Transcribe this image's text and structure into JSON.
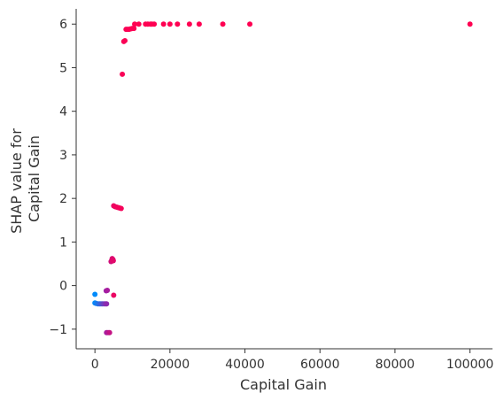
{
  "chart_data": {
    "type": "scatter",
    "title": "",
    "xlabel": "Capital Gain",
    "ylabel_lines": [
      "SHAP value for",
      "Capital Gain"
    ],
    "xlim": [
      -5000,
      106000
    ],
    "ylim": [
      -1.45,
      6.35
    ],
    "xticks": [
      0,
      20000,
      40000,
      60000,
      80000,
      100000
    ],
    "xtick_labels": [
      "0",
      "20000",
      "40000",
      "60000",
      "80000",
      "100000"
    ],
    "yticks": [
      -1,
      0,
      1,
      2,
      3,
      4,
      5,
      6
    ],
    "ytick_labels": [
      "−1",
      "0",
      "1",
      "2",
      "3",
      "4",
      "5",
      "6"
    ],
    "grid": false,
    "legend": "none",
    "colors": {
      "low": "#008bfb",
      "high": "#ff0052",
      "mid": "#9d1fa6",
      "axis": "#333333"
    },
    "points": [
      {
        "x": 0,
        "y": -0.2,
        "c": 0.0
      },
      {
        "x": 0,
        "y": -0.4,
        "c": 0.0
      },
      {
        "x": 300,
        "y": -0.41,
        "c": 0.05
      },
      {
        "x": 800,
        "y": -0.42,
        "c": 0.1
      },
      {
        "x": 1200,
        "y": -0.42,
        "c": 0.15
      },
      {
        "x": 1600,
        "y": -0.42,
        "c": 0.2
      },
      {
        "x": 2000,
        "y": -0.42,
        "c": 0.3
      },
      {
        "x": 2400,
        "y": -0.42,
        "c": 0.35
      },
      {
        "x": 2800,
        "y": -0.42,
        "c": 0.4
      },
      {
        "x": 3100,
        "y": -0.42,
        "c": 0.45
      },
      {
        "x": 3000,
        "y": -0.12,
        "c": 0.5
      },
      {
        "x": 3300,
        "y": -0.11,
        "c": 0.55
      },
      {
        "x": 3100,
        "y": -1.08,
        "c": 0.55
      },
      {
        "x": 3500,
        "y": -1.08,
        "c": 0.6
      },
      {
        "x": 3900,
        "y": -1.08,
        "c": 0.7
      },
      {
        "x": 4300,
        "y": 0.55,
        "c": 0.75
      },
      {
        "x": 4500,
        "y": 0.58,
        "c": 0.8
      },
      {
        "x": 4600,
        "y": 0.62,
        "c": 0.8
      },
      {
        "x": 4800,
        "y": 0.6,
        "c": 0.85
      },
      {
        "x": 4900,
        "y": 0.57,
        "c": 0.85
      },
      {
        "x": 5000,
        "y": -0.22,
        "c": 0.9
      },
      {
        "x": 5000,
        "y": 1.83,
        "c": 0.9
      },
      {
        "x": 5400,
        "y": 1.81,
        "c": 0.92
      },
      {
        "x": 5800,
        "y": 1.8,
        "c": 0.93
      },
      {
        "x": 6200,
        "y": 1.79,
        "c": 0.94
      },
      {
        "x": 6600,
        "y": 1.78,
        "c": 0.95
      },
      {
        "x": 7000,
        "y": 1.77,
        "c": 0.95
      },
      {
        "x": 7300,
        "y": 4.85,
        "c": 0.97
      },
      {
        "x": 7700,
        "y": 5.6,
        "c": 0.97
      },
      {
        "x": 8000,
        "y": 5.62,
        "c": 0.98
      },
      {
        "x": 8300,
        "y": 5.88,
        "c": 0.98
      },
      {
        "x": 8700,
        "y": 5.88,
        "c": 0.98
      },
      {
        "x": 9100,
        "y": 5.88,
        "c": 0.99
      },
      {
        "x": 9500,
        "y": 5.89,
        "c": 0.99
      },
      {
        "x": 10000,
        "y": 5.9,
        "c": 0.99
      },
      {
        "x": 10400,
        "y": 5.9,
        "c": 0.99
      },
      {
        "x": 10600,
        "y": 6.0,
        "c": 1.0
      },
      {
        "x": 11700,
        "y": 6.0,
        "c": 1.0
      },
      {
        "x": 13500,
        "y": 6.0,
        "c": 1.0
      },
      {
        "x": 14100,
        "y": 6.0,
        "c": 1.0
      },
      {
        "x": 14800,
        "y": 6.0,
        "c": 1.0
      },
      {
        "x": 15200,
        "y": 6.0,
        "c": 1.0
      },
      {
        "x": 15800,
        "y": 6.0,
        "c": 1.0
      },
      {
        "x": 18300,
        "y": 6.0,
        "c": 1.0
      },
      {
        "x": 20000,
        "y": 6.0,
        "c": 1.0
      },
      {
        "x": 22000,
        "y": 6.0,
        "c": 1.0
      },
      {
        "x": 25200,
        "y": 6.0,
        "c": 1.0
      },
      {
        "x": 27800,
        "y": 6.0,
        "c": 1.0
      },
      {
        "x": 34100,
        "y": 6.0,
        "c": 1.0
      },
      {
        "x": 41300,
        "y": 6.0,
        "c": 1.0
      },
      {
        "x": 99999,
        "y": 6.0,
        "c": 1.0
      }
    ]
  }
}
